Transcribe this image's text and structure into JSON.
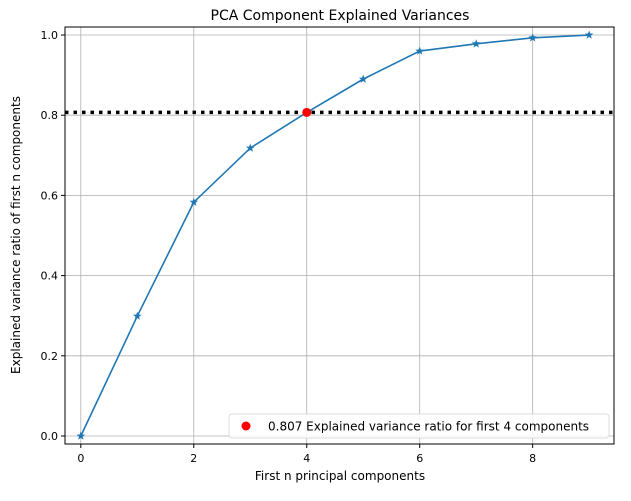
{
  "chart_data": {
    "type": "line",
    "title": "PCA Component Explained Variances",
    "xlabel": "First n principal components",
    "ylabel": "Explained variance ratio of first n components",
    "x": [
      0,
      1,
      2,
      3,
      4,
      5,
      6,
      7,
      8,
      9
    ],
    "series": [
      {
        "values": [
          0.0,
          0.299,
          0.583,
          0.718,
          0.807,
          0.89,
          0.96,
          0.978,
          0.993,
          1.0
        ],
        "color": "#1f77b4",
        "marker": "star"
      }
    ],
    "highlight": {
      "x": 4,
      "y": 0.807,
      "color": "#ff0000",
      "label": "0.807 Explained variance ratio for first 4 components"
    },
    "hline": {
      "y": 0.807,
      "style": "dotted",
      "color": "#000000"
    },
    "xticks": [
      "0",
      "2",
      "4",
      "6",
      "8"
    ],
    "yticks": [
      "0.0",
      "0.2",
      "0.4",
      "0.6",
      "0.8",
      "1.0"
    ],
    "xlim": [
      -0.28,
      9.44
    ],
    "ylim": [
      -0.02,
      1.02
    ],
    "grid": true,
    "legend": "lower-right"
  }
}
